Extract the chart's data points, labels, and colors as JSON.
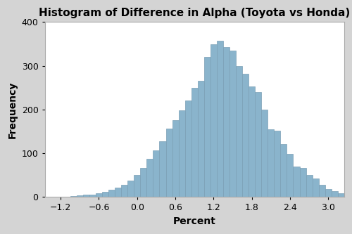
{
  "title": "Histogram of Difference in Alpha (Toyota vs Honda)",
  "xlabel": "Percent",
  "ylabel": "Frequency",
  "bar_color": "#8ab4cc",
  "bar_edge_color": "#7a9fb5",
  "background_color": "#d4d4d4",
  "plot_bg_color": "#ffffff",
  "xlim": [
    -1.45,
    3.25
  ],
  "ylim": [
    0,
    400
  ],
  "xticks": [
    -1.2,
    -0.6,
    0.0,
    0.6,
    1.2,
    1.8,
    2.4,
    3.0
  ],
  "yticks": [
    0,
    100,
    200,
    300,
    400
  ],
  "bin_width": 0.1,
  "x_start": -1.25,
  "title_fontsize": 11,
  "label_fontsize": 10,
  "tick_fontsize": 9,
  "bar_heights": [
    1,
    1,
    2,
    3,
    5,
    6,
    8,
    12,
    17,
    22,
    28,
    38,
    50,
    67,
    87,
    107,
    127,
    157,
    175,
    198,
    220,
    250,
    265,
    320,
    350,
    357,
    343,
    335,
    299,
    282,
    253,
    240,
    200,
    154,
    151,
    121,
    99,
    70,
    66,
    50,
    43,
    28,
    18,
    13,
    8,
    5,
    3,
    2,
    1
  ]
}
